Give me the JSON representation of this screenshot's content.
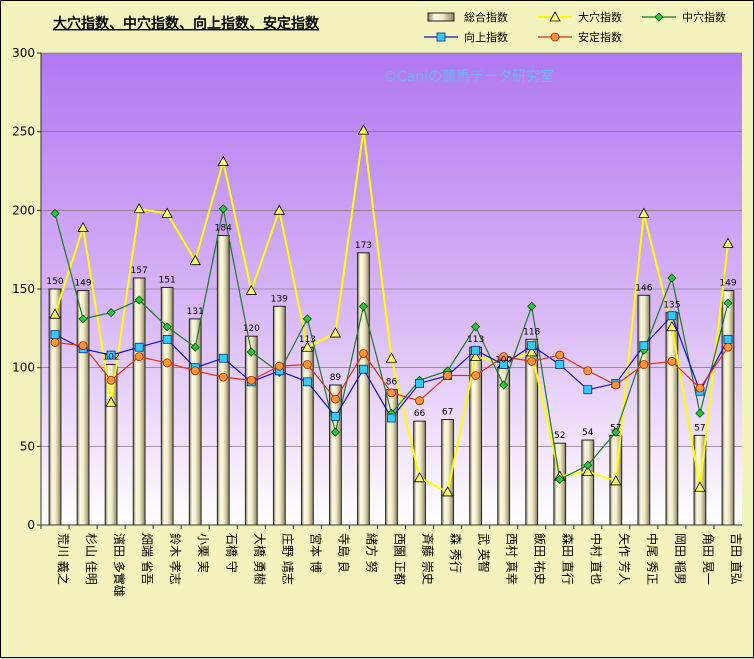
{
  "chart_data": {
    "type": "bar",
    "title": "大穴指数、中穴指数、向上指数、安定指数",
    "watermark": "©Caniの競馬データ研究室",
    "ylim": [
      0,
      300
    ],
    "yticks": [
      0,
      50,
      100,
      150,
      200,
      250,
      300
    ],
    "grid": true,
    "legend_position": "top-right",
    "categories": [
      "荒川 義之",
      "杉山 佳明",
      "濱田 多實雄",
      "畑端 省吾",
      "鈴木 孝志",
      "小栗 実",
      "石橋 守",
      "大橋 勇樹",
      "庄野 靖志",
      "宮本 博",
      "寺島 良",
      "緒方 努",
      "西園 正都",
      "斉藤 崇史",
      "森 秀行",
      "武 英智",
      "西村 真幸",
      "飯田 祐史",
      "森田 直行",
      "中村 直也",
      "矢作 芳人",
      "中尾 秀正",
      "岡田 稲男",
      "角田 晃一",
      "吉田 直弘"
    ],
    "series": [
      {
        "name": "総合指数",
        "kind": "bar",
        "color": "#ddd6a9",
        "values": [
          150,
          149,
          102,
          157,
          151,
          131,
          184,
          120,
          139,
          113,
          89,
          173,
          86,
          66,
          67,
          113,
          100,
          118,
          52,
          54,
          57,
          146,
          135,
          57,
          149
        ],
        "show_labels": true
      },
      {
        "name": "大穴指数",
        "kind": "line",
        "color": "#ffff00",
        "marker": "triangle",
        "values": [
          134,
          189,
          78,
          201,
          198,
          168,
          231,
          149,
          200,
          113,
          122,
          251,
          106,
          30,
          21,
          107,
          103,
          110,
          31,
          34,
          28,
          198,
          126,
          24,
          179
        ]
      },
      {
        "name": "中穴指数",
        "kind": "line",
        "color": "#1a7a2a",
        "marker": "diamond",
        "values": [
          198,
          131,
          135,
          143,
          126,
          113,
          201,
          110,
          97,
          131,
          59,
          139,
          71,
          92,
          98,
          126,
          89,
          139,
          29,
          38,
          59,
          111,
          157,
          71,
          141
        ]
      },
      {
        "name": "向上指数",
        "kind": "line",
        "color": "#1010d0",
        "marker": "square",
        "values": [
          121,
          112,
          108,
          113,
          118,
          100,
          106,
          91,
          98,
          91,
          69,
          99,
          68,
          90,
          95,
          111,
          102,
          114,
          102,
          86,
          90,
          114,
          133,
          85,
          118
        ]
      },
      {
        "name": "安定指数",
        "kind": "line",
        "color": "#e03010",
        "marker": "circle",
        "values": [
          116,
          114,
          92,
          107,
          103,
          98,
          94,
          92,
          101,
          102,
          80,
          109,
          84,
          79,
          95,
          95,
          107,
          104,
          108,
          98,
          89,
          102,
          104,
          87,
          113
        ]
      }
    ]
  }
}
